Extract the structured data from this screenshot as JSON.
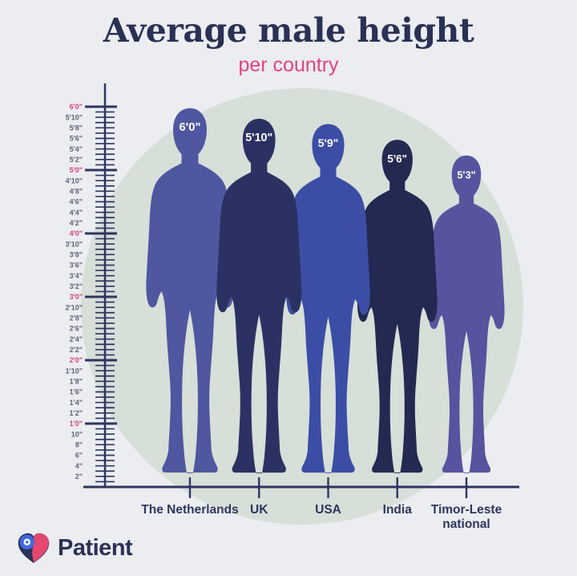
{
  "header": {
    "title": "Average male height",
    "subtitle": "per country",
    "title_color": "#2a3155",
    "subtitle_color": "#e2437e"
  },
  "canvas": {
    "background": "#ecedf1",
    "ellipse_color": "#d7dfd9"
  },
  "logo": {
    "text": "Patient",
    "text_color": "#2b3157",
    "heart_pink": "#e4486f",
    "heart_blue": "#3e6ae0",
    "heart_navy": "#2b3157"
  },
  "chart_data": {
    "type": "pictograph",
    "title": "Average male height",
    "subtitle": "per country",
    "unit": "feet-inches",
    "categories": [
      "The Netherlands",
      "UK",
      "USA",
      "India",
      "Timor-Leste national"
    ],
    "category_label_lines": [
      [
        "The Netherlands"
      ],
      [
        "UK"
      ],
      [
        "USA"
      ],
      [
        "India"
      ],
      [
        "Timor-Leste",
        "national"
      ]
    ],
    "values_inches": [
      72,
      70,
      69,
      66,
      63
    ],
    "value_labels": [
      "6'0\"",
      "5'10\"",
      "5'9\"",
      "5'6\"",
      "5'3\""
    ],
    "figure_colors": [
      "#4e579f",
      "#2b3263",
      "#3c4da5",
      "#232951",
      "#56549e"
    ],
    "value_label_color": "#ffffff",
    "ylim_inches": [
      0,
      72
    ],
    "legend": "none",
    "axis_color": "#2e3560",
    "category_label_color": "#2e3560",
    "ruler": {
      "line_color": "#2e3560",
      "foot_label_color": "#d4417c",
      "label_color": "#5f6477",
      "labels": [
        {
          "inches": 72,
          "text": "6'0\"",
          "foot": true
        },
        {
          "inches": 70,
          "text": "5'10\"",
          "foot": false
        },
        {
          "inches": 68,
          "text": "5'8\"",
          "foot": false
        },
        {
          "inches": 66,
          "text": "5'6\"",
          "foot": false
        },
        {
          "inches": 64,
          "text": "5'4\"",
          "foot": false
        },
        {
          "inches": 62,
          "text": "5'2\"",
          "foot": false
        },
        {
          "inches": 60,
          "text": "5'0\"",
          "foot": true
        },
        {
          "inches": 58,
          "text": "4'10\"",
          "foot": false
        },
        {
          "inches": 56,
          "text": "4'8\"",
          "foot": false
        },
        {
          "inches": 54,
          "text": "4'6\"",
          "foot": false
        },
        {
          "inches": 52,
          "text": "4'4\"",
          "foot": false
        },
        {
          "inches": 50,
          "text": "4'2\"",
          "foot": false
        },
        {
          "inches": 48,
          "text": "4'0\"",
          "foot": true
        },
        {
          "inches": 46,
          "text": "3'10\"",
          "foot": false
        },
        {
          "inches": 44,
          "text": "3'8\"",
          "foot": false
        },
        {
          "inches": 42,
          "text": "3'6\"",
          "foot": false
        },
        {
          "inches": 40,
          "text": "3'4\"",
          "foot": false
        },
        {
          "inches": 38,
          "text": "3'2\"",
          "foot": false
        },
        {
          "inches": 36,
          "text": "3'0\"",
          "foot": true
        },
        {
          "inches": 34,
          "text": "2'10\"",
          "foot": false
        },
        {
          "inches": 32,
          "text": "2'8\"",
          "foot": false
        },
        {
          "inches": 30,
          "text": "2'6\"",
          "foot": false
        },
        {
          "inches": 28,
          "text": "2'4\"",
          "foot": false
        },
        {
          "inches": 26,
          "text": "2'2\"",
          "foot": false
        },
        {
          "inches": 24,
          "text": "2'0\"",
          "foot": true
        },
        {
          "inches": 22,
          "text": "1'10\"",
          "foot": false
        },
        {
          "inches": 20,
          "text": "1'8\"",
          "foot": false
        },
        {
          "inches": 18,
          "text": "1'6\"",
          "foot": false
        },
        {
          "inches": 16,
          "text": "1'4\"",
          "foot": false
        },
        {
          "inches": 14,
          "text": "1'2\"",
          "foot": false
        },
        {
          "inches": 12,
          "text": "1'0\"",
          "foot": true
        },
        {
          "inches": 10,
          "text": "10\"",
          "foot": false
        },
        {
          "inches": 8,
          "text": "8\"",
          "foot": false
        },
        {
          "inches": 6,
          "text": "6\"",
          "foot": false
        },
        {
          "inches": 4,
          "text": "4\"",
          "foot": false
        },
        {
          "inches": 2,
          "text": "2\"",
          "foot": false
        }
      ]
    }
  }
}
